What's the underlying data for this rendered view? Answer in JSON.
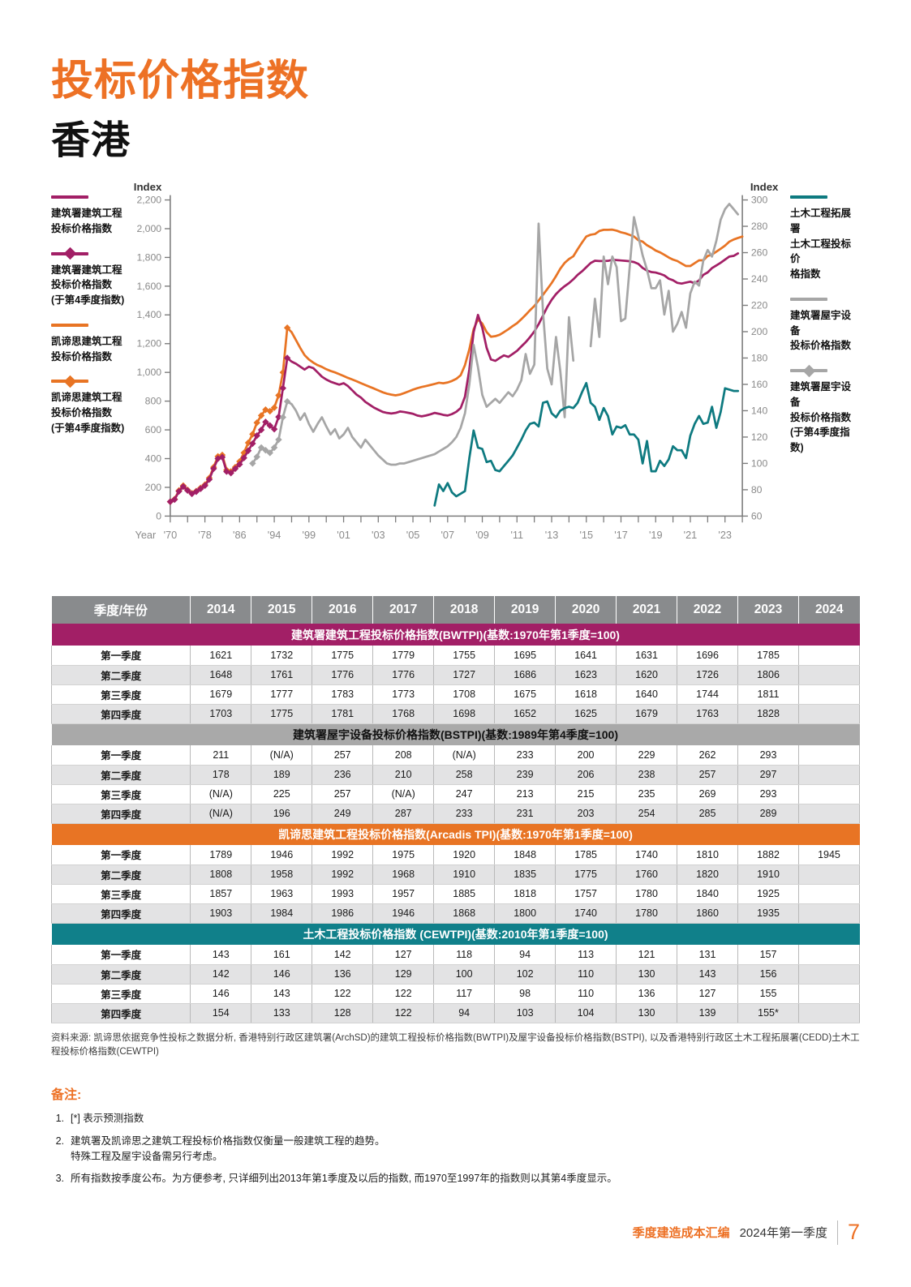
{
  "page": {
    "title": "投标价格指数",
    "subtitle": "香港",
    "footer": {
      "brand": "季度建造成本汇编",
      "edition": "2024年第一季度",
      "page_number": "7"
    }
  },
  "colors": {
    "accent_orange": "#ED7125",
    "magenta": "#A21F66",
    "orange_line": "#E87424",
    "gray_line": "#A6A6A6",
    "teal_line": "#0E7A80",
    "teal_band": "#10808A",
    "year_header_gray": "#898B8D",
    "section_gray": "#A9A9A9",
    "row_stripe": "#E3E3E4"
  },
  "chart": {
    "left_axis_title": "Index",
    "right_axis_title": "Index",
    "x_axis_title": "Year",
    "x_ticks": [
      {
        "u": 0,
        "label": "'70"
      },
      {
        "u": 8,
        "label": "'78"
      },
      {
        "u": 16,
        "label": "'86"
      },
      {
        "u": 24,
        "label": "'94"
      },
      {
        "u": 32,
        "label": "'99"
      },
      {
        "u": 40,
        "label": "'01"
      },
      {
        "u": 48,
        "label": "'03"
      },
      {
        "u": 56,
        "label": "'05"
      },
      {
        "u": 64,
        "label": "'07"
      },
      {
        "u": 72,
        "label": "'09"
      },
      {
        "u": 80,
        "label": "'11"
      },
      {
        "u": 88,
        "label": "'13"
      },
      {
        "u": 96,
        "label": "'15"
      },
      {
        "u": 104,
        "label": "'17"
      },
      {
        "u": 112,
        "label": "'19"
      },
      {
        "u": 120,
        "label": "'21"
      },
      {
        "u": 128,
        "label": "'23"
      }
    ],
    "legend_left": [
      {
        "label": "建筑署建筑工程\n投标价格指数",
        "color": "#A21F66",
        "marker": false
      },
      {
        "label": "建筑署建筑工程\n投标价格指数\n(于第4季度指数)",
        "color": "#A21F66",
        "marker": true
      },
      {
        "label": "凯谛思建筑工程\n投标价格指数",
        "color": "#E87424",
        "marker": false
      },
      {
        "label": "凯谛思建筑工程\n投标价格指数\n(于第4季度指数)",
        "color": "#E87424",
        "marker": true
      }
    ],
    "legend_right": [
      {
        "label": "土木工程拓展署\n土木工程投标价\n格指数",
        "color": "#0E7A80",
        "marker": false
      },
      {
        "label": "建筑署屋宇设备\n投标价格指数",
        "color": "#A6A6A6",
        "marker": false
      },
      {
        "label": "建筑署屋宇设备\n投标价格指数\n(于第4季度指数)",
        "color": "#A6A6A6",
        "marker": true
      }
    ]
  },
  "chart_data": {
    "type": "line",
    "title": "香港投标价格指数 (Tender Price Indices, Hong Kong)",
    "left_ylim": [
      0,
      2200
    ],
    "right_ylim": [
      60,
      300
    ],
    "left_tick_step": 200,
    "right_tick_step": 20,
    "x_scale_note": "u axis: 1970-1997 one step per year (第4季度 values); from 1998 one step per quarter (季度 values); u=0 is 1970, u=132 is 2024 Q1",
    "series": [
      {
        "id": "arcadis_tpi",
        "name": "凯谛思建筑工程投标价格指数 (Arcadis TPI)",
        "axis": "left",
        "color": "#E87424",
        "markers_through_u": 27,
        "start_u": 0,
        "values": [
          100,
          118,
          178,
          212,
          182,
          158,
          174,
          196,
          218,
          265,
          340,
          415,
          425,
          320,
          310,
          340,
          380,
          440,
          510,
          570,
          650,
          700,
          740,
          730,
          755,
          840,
          1000,
          1310,
          1280,
          1225,
          1170,
          1120,
          1090,
          1068,
          1050,
          1038,
          1022,
          1010,
          1000,
          988,
          975,
          962,
          950,
          938,
          925,
          912,
          900,
          888,
          875,
          862,
          852,
          845,
          840,
          846,
          856,
          868,
          880,
          890,
          898,
          905,
          912,
          920,
          928,
          924,
          930,
          940,
          955,
          980,
          1050,
          1160,
          1300,
          1370,
          1340,
          1280,
          1248,
          1252,
          1262,
          1280,
          1300,
          1322,
          1342,
          1370,
          1400,
          1432,
          1462,
          1500,
          1540,
          1580,
          1622,
          1670,
          1722,
          1762,
          1789,
          1808,
          1857,
          1903,
          1946,
          1958,
          1963,
          1984,
          1992,
          1992,
          1993,
          1986,
          1975,
          1968,
          1957,
          1946,
          1920,
          1910,
          1885,
          1868,
          1848,
          1835,
          1818,
          1800,
          1785,
          1775,
          1757,
          1740,
          1740,
          1760,
          1780,
          1780,
          1810,
          1820,
          1840,
          1860,
          1882,
          1910,
          1925,
          1935,
          1945
        ]
      },
      {
        "id": "bwtpi",
        "name": "建筑署建筑工程投标价格指数 (BWTPI)",
        "axis": "left",
        "color": "#A21F66",
        "markers_through_u": 27,
        "start_u": 0,
        "values": [
          100,
          115,
          172,
          205,
          178,
          155,
          170,
          190,
          212,
          255,
          330,
          400,
          410,
          310,
          300,
          330,
          360,
          405,
          455,
          505,
          560,
          600,
          655,
          630,
          605,
          690,
          890,
          1100,
          1075,
          1060,
          1040,
          1020,
          1040,
          1030,
          1000,
          970,
          950,
          935,
          925,
          915,
          925,
          905,
          875,
          845,
          825,
          795,
          775,
          755,
          740,
          725,
          718,
          714,
          718,
          728,
          724,
          718,
          712,
          700,
          694,
          700,
          708,
          718,
          712,
          704,
          700,
          710,
          726,
          752,
          830,
          1020,
          1280,
          1400,
          1310,
          1170,
          1090,
          1080,
          1100,
          1118,
          1108,
          1128,
          1150,
          1180,
          1210,
          1245,
          1285,
          1335,
          1395,
          1455,
          1505,
          1545,
          1575,
          1600,
          1621,
          1648,
          1679,
          1703,
          1732,
          1761,
          1777,
          1775,
          1775,
          1776,
          1783,
          1781,
          1779,
          1776,
          1773,
          1768,
          1755,
          1727,
          1708,
          1698,
          1695,
          1686,
          1675,
          1652,
          1641,
          1623,
          1618,
          1625,
          1631,
          1620,
          1640,
          1679,
          1696,
          1726,
          1744,
          1763,
          1785,
          1806,
          1811,
          1828
        ]
      },
      {
        "id": "bstpi",
        "name": "建筑署屋宇设备投标价格指数 (BSTPI)",
        "axis": "right",
        "color": "#A6A6A6",
        "markers_through_u": 27,
        "start_u": 19,
        "values": [
          100,
          105,
          112,
          110,
          108,
          112,
          118,
          135,
          147,
          145,
          140,
          133,
          138,
          130,
          124,
          130,
          135,
          128,
          122,
          126,
          119,
          122,
          127,
          120,
          116,
          112,
          118,
          114,
          110,
          106,
          103,
          100,
          99,
          99,
          100,
          100,
          101,
          102,
          103,
          104,
          105,
          106,
          107,
          109,
          111,
          113,
          116,
          120,
          127,
          138,
          160,
          190,
          173,
          152,
          143,
          146,
          149,
          146,
          150,
          154,
          151,
          156,
          163,
          183,
          168,
          175,
          282,
          215,
          172,
          160,
          196,
          170,
          135,
          211,
          178,
          null,
          null,
          null,
          189,
          225,
          196,
          257,
          236,
          257,
          249,
          208,
          210,
          null,
          287,
          null,
          258,
          247,
          233,
          233,
          239,
          213,
          231,
          200,
          206,
          215,
          203,
          229,
          238,
          235,
          254,
          262,
          257,
          269,
          285,
          293,
          297,
          293,
          289
        ]
      },
      {
        "id": "cewtpi",
        "name": "土木工程拓展署土木工程投标价格指数 (CEWTPI)",
        "axis": "right",
        "color": "#0E7A80",
        "markers_through_u": null,
        "start_u": 61,
        "values": [
          68,
          84,
          79,
          85,
          78,
          75,
          77,
          79,
          104,
          125,
          112,
          111,
          101,
          102,
          95,
          94,
          98,
          102,
          106,
          112,
          118,
          125,
          130,
          131,
          128,
          146,
          147,
          138,
          135,
          140,
          142,
          143,
          142,
          146,
          154,
          161,
          146,
          143,
          133,
          142,
          136,
          122,
          128,
          127,
          129,
          122,
          122,
          118,
          100,
          117,
          94,
          94,
          102,
          98,
          103,
          113,
          110,
          110,
          104,
          121,
          130,
          136,
          130,
          131,
          143,
          127,
          139,
          157,
          156,
          155,
          155
        ]
      }
    ]
  },
  "table": {
    "corner": "季度/年份",
    "years": [
      "2014",
      "2015",
      "2016",
      "2017",
      "2018",
      "2019",
      "2020",
      "2021",
      "2022",
      "2023",
      "2024"
    ],
    "row_labels": [
      "第一季度",
      "第二季度",
      "第三季度",
      "第四季度"
    ],
    "sections": [
      {
        "title": "建筑署建筑工程投标价格指数(BWTPI)(基数:1970年第1季度=100)",
        "color": "#A21F66",
        "text_color": "#ffffff",
        "rows": [
          [
            "1621",
            "1732",
            "1775",
            "1779",
            "1755",
            "1695",
            "1641",
            "1631",
            "1696",
            "1785",
            ""
          ],
          [
            "1648",
            "1761",
            "1776",
            "1776",
            "1727",
            "1686",
            "1623",
            "1620",
            "1726",
            "1806",
            ""
          ],
          [
            "1679",
            "1777",
            "1783",
            "1773",
            "1708",
            "1675",
            "1618",
            "1640",
            "1744",
            "1811",
            ""
          ],
          [
            "1703",
            "1775",
            "1781",
            "1768",
            "1698",
            "1652",
            "1625",
            "1679",
            "1763",
            "1828",
            ""
          ]
        ]
      },
      {
        "title": "建筑署屋宇设备投标价格指数(BSTPI)(基数:1989年第4季度=100)",
        "color": "#A9A9A9",
        "text_color": "#111111",
        "rows": [
          [
            "211",
            "(N/A)",
            "257",
            "208",
            "(N/A)",
            "233",
            "200",
            "229",
            "262",
            "293",
            ""
          ],
          [
            "178",
            "189",
            "236",
            "210",
            "258",
            "239",
            "206",
            "238",
            "257",
            "297",
            ""
          ],
          [
            "(N/A)",
            "225",
            "257",
            "(N/A)",
            "247",
            "213",
            "215",
            "235",
            "269",
            "293",
            ""
          ],
          [
            "(N/A)",
            "196",
            "249",
            "287",
            "233",
            "231",
            "203",
            "254",
            "285",
            "289",
            ""
          ]
        ]
      },
      {
        "title": "凯谛思建筑工程投标价格指数(Arcadis TPI)(基数:1970年第1季度=100)",
        "color": "#E87424",
        "text_color": "#ffffff",
        "rows": [
          [
            "1789",
            "1946",
            "1992",
            "1975",
            "1920",
            "1848",
            "1785",
            "1740",
            "1810",
            "1882",
            "1945"
          ],
          [
            "1808",
            "1958",
            "1992",
            "1968",
            "1910",
            "1835",
            "1775",
            "1760",
            "1820",
            "1910",
            ""
          ],
          [
            "1857",
            "1963",
            "1993",
            "1957",
            "1885",
            "1818",
            "1757",
            "1780",
            "1840",
            "1925",
            ""
          ],
          [
            "1903",
            "1984",
            "1986",
            "1946",
            "1868",
            "1800",
            "1740",
            "1780",
            "1860",
            "1935",
            ""
          ]
        ]
      },
      {
        "title": "土木工程投标价格指数 (CEWTPI)(基数:2010年第1季度=100)",
        "color": "#10808A",
        "text_color": "#ffffff",
        "rows": [
          [
            "143",
            "161",
            "142",
            "127",
            "118",
            "94",
            "113",
            "121",
            "131",
            "157",
            ""
          ],
          [
            "142",
            "146",
            "136",
            "129",
            "100",
            "102",
            "110",
            "130",
            "143",
            "156",
            ""
          ],
          [
            "146",
            "143",
            "122",
            "122",
            "117",
            "98",
            "110",
            "136",
            "127",
            "155",
            ""
          ],
          [
            "154",
            "133",
            "128",
            "122",
            "94",
            "103",
            "104",
            "130",
            "139",
            "155*",
            ""
          ]
        ]
      }
    ]
  },
  "source": "资料来源: 凯谛思依据竞争性投标之数据分析, 香港特别行政区建筑署(ArchSD)的建筑工程投标价格指数(BWTPI)及屋宇设备投标价格指数(BSTPI), 以及香港特别行政区土木工程拓展署(CEDD)土木工程投标价格指数(CEWTPI)",
  "notes": {
    "heading": "备注:",
    "items": [
      "[*] 表示预测指数",
      "建筑署及凯谛思之建筑工程投标价格指数仅衡量一般建筑工程的趋势。\n特殊工程及屋宇设备需另行考虑。",
      "所有指数按季度公布。为方便参考, 只详细列出2013年第1季度及以后的指数, 而1970至1997年的指数则以其第4季度显示。"
    ]
  }
}
